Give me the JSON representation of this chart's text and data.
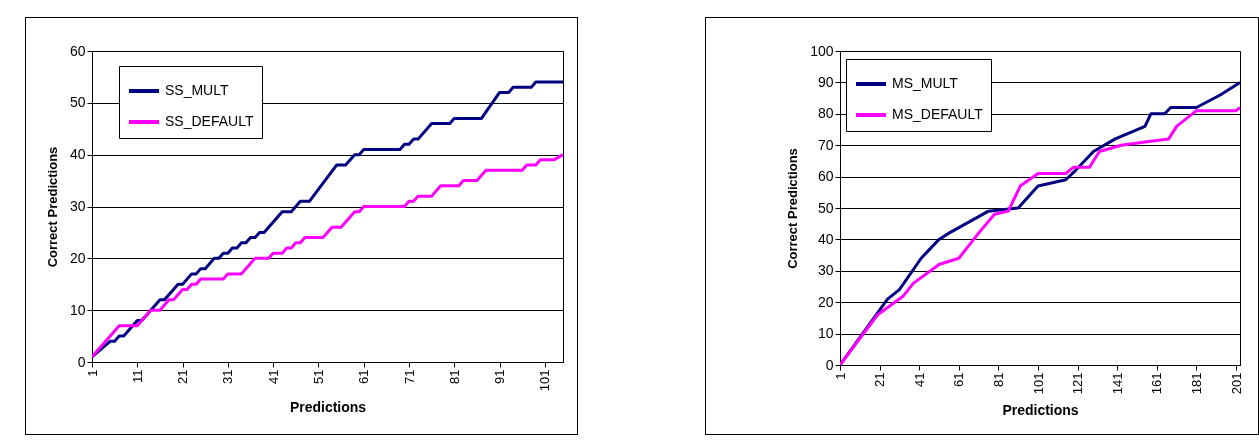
{
  "chart_data": [
    {
      "type": "line",
      "xlabel": "Predictions",
      "ylabel": "Correct Predictions",
      "xlim": [
        1,
        105
      ],
      "xticks": [
        1,
        11,
        21,
        31,
        41,
        51,
        61,
        71,
        81,
        91,
        101
      ],
      "ylim": [
        0,
        60
      ],
      "yticks": [
        0,
        10,
        20,
        30,
        40,
        50,
        60
      ],
      "grid": "y",
      "legend": "top left",
      "series": [
        {
          "name": "SS_MULT",
          "color": "#000080",
          "x": [
            1,
            5,
            6,
            7,
            8,
            11,
            12,
            15,
            16,
            17,
            19,
            20,
            21,
            23,
            24,
            25,
            26,
            28,
            29,
            30,
            31,
            32,
            33,
            34,
            35,
            36,
            37,
            38,
            39,
            43,
            45,
            47,
            49,
            55,
            57,
            59,
            60,
            61,
            69,
            70,
            71,
            72,
            73,
            76,
            80,
            81,
            87,
            91,
            93,
            94,
            98,
            99,
            105
          ],
          "values": [
            1,
            4,
            4,
            5,
            5,
            8,
            8,
            11,
            12,
            12,
            14,
            15,
            15,
            17,
            17,
            18,
            18,
            20,
            20,
            21,
            21,
            22,
            22,
            23,
            23,
            24,
            24,
            25,
            25,
            29,
            29,
            31,
            31,
            38,
            38,
            40,
            40,
            41,
            41,
            42,
            42,
            43,
            43,
            46,
            46,
            47,
            47,
            52,
            52,
            53,
            53,
            54,
            54
          ]
        },
        {
          "name": "SS_DEFAULT",
          "color": "#ff00ff",
          "x": [
            1,
            7,
            11,
            12,
            14,
            16,
            18,
            19,
            21,
            22,
            23,
            24,
            25,
            30,
            31,
            34,
            37,
            40,
            41,
            43,
            44,
            45,
            46,
            47,
            48,
            52,
            54,
            56,
            59,
            60,
            61,
            70,
            71,
            72,
            73,
            76,
            78,
            82,
            83,
            86,
            88,
            96,
            97,
            99,
            100,
            103,
            105
          ],
          "values": [
            1,
            7,
            7,
            8,
            10,
            10,
            12,
            12,
            14,
            14,
            15,
            15,
            16,
            16,
            17,
            17,
            20,
            20,
            21,
            21,
            22,
            22,
            23,
            23,
            24,
            24,
            26,
            26,
            29,
            29,
            30,
            30,
            31,
            31,
            32,
            32,
            34,
            34,
            35,
            35,
            37,
            37,
            38,
            38,
            39,
            39,
            40
          ]
        }
      ]
    },
    {
      "type": "line",
      "xlabel": "Predictions",
      "ylabel": "Correct Predictions",
      "xlim": [
        1,
        203
      ],
      "xticks": [
        1,
        21,
        41,
        61,
        81,
        101,
        121,
        141,
        161,
        181,
        201
      ],
      "ylim": [
        0,
        100
      ],
      "yticks": [
        0,
        10,
        20,
        30,
        40,
        50,
        60,
        70,
        80,
        90,
        100
      ],
      "grid": "y",
      "legend": "top left",
      "series": [
        {
          "name": "MS_MULT",
          "color": "#000080",
          "x": [
            1,
            25,
            31,
            42,
            51,
            56,
            76,
            91,
            101,
            115,
            120,
            129,
            140,
            155,
            158,
            165,
            168,
            181,
            193,
            203
          ],
          "values": [
            0,
            21,
            24,
            34,
            40,
            42,
            49,
            50,
            57,
            59,
            62,
            68,
            72,
            76,
            80,
            80,
            82,
            82,
            86,
            90
          ]
        },
        {
          "name": "MS_DEFAULT",
          "color": "#ff00ff",
          "x": [
            1,
            20,
            33,
            38,
            51,
            61,
            71,
            79,
            86,
            92,
            101,
            115,
            119,
            127,
            132,
            143,
            155,
            167,
            171,
            181,
            201,
            203
          ],
          "values": [
            0,
            16,
            22,
            26,
            32,
            34,
            42,
            48,
            49,
            57,
            61,
            61,
            63,
            63,
            68,
            70,
            71,
            72,
            76,
            81,
            81,
            82
          ]
        }
      ]
    }
  ]
}
